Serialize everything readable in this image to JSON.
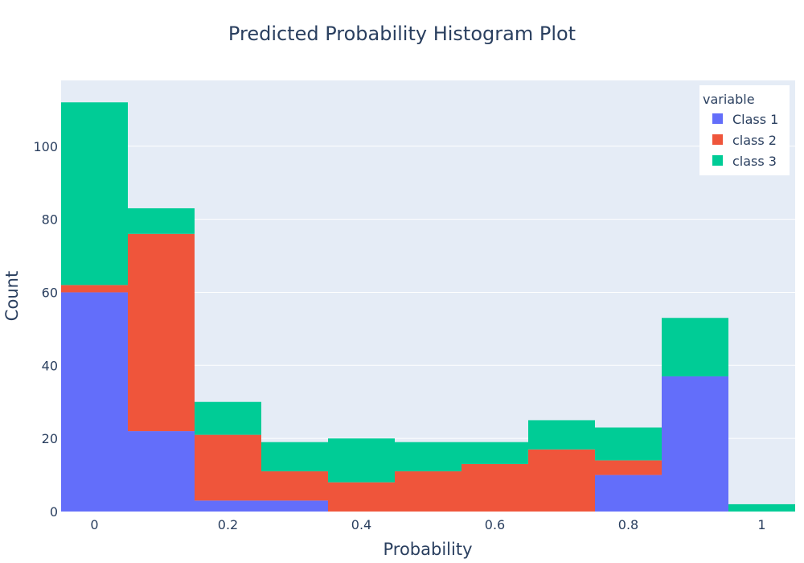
{
  "chart_data": {
    "type": "bar",
    "title": "Predicted Probability Histogram Plot",
    "xlabel": "Probability",
    "ylabel": "Count",
    "barmode": "stack",
    "bins": [
      "0-0.05",
      "0.05-0.15",
      "0.15-0.25",
      "0.25-0.35",
      "0.35-0.45",
      "0.45-0.55",
      "0.55-0.65",
      "0.65-0.75",
      "0.75-0.85",
      "0.85-0.95",
      "0.95-1.05"
    ],
    "bin_edges": [
      -0.05,
      0.05,
      0.15,
      0.25,
      0.35,
      0.45,
      0.55,
      0.65,
      0.75,
      0.85,
      0.95,
      1.05
    ],
    "x_ticks": [
      "0",
      "0.2",
      "0.4",
      "0.6",
      "0.8",
      "1"
    ],
    "x_tick_values": [
      0,
      0.2,
      0.4,
      0.6,
      0.8,
      1
    ],
    "y_ticks": [
      "0",
      "20",
      "40",
      "60",
      "80",
      "100"
    ],
    "y_tick_values": [
      0,
      20,
      40,
      60,
      80,
      100
    ],
    "xlim": [
      -0.05,
      1.05
    ],
    "ylim": [
      0,
      118
    ],
    "grid": true,
    "legend": {
      "title": "variable",
      "position": "top-right"
    },
    "series": [
      {
        "name": "Class 1",
        "color": "#636efa",
        "values": [
          60,
          22,
          3,
          3,
          0,
          0,
          0,
          0,
          10,
          37,
          0
        ]
      },
      {
        "name": "class 2",
        "color": "#ef553b",
        "values": [
          2,
          54,
          18,
          8,
          8,
          11,
          13,
          17,
          4,
          0,
          0
        ]
      },
      {
        "name": "class 3",
        "color": "#00cc96",
        "values": [
          50,
          7,
          9,
          8,
          12,
          8,
          6,
          8,
          9,
          16,
          2
        ]
      }
    ]
  }
}
